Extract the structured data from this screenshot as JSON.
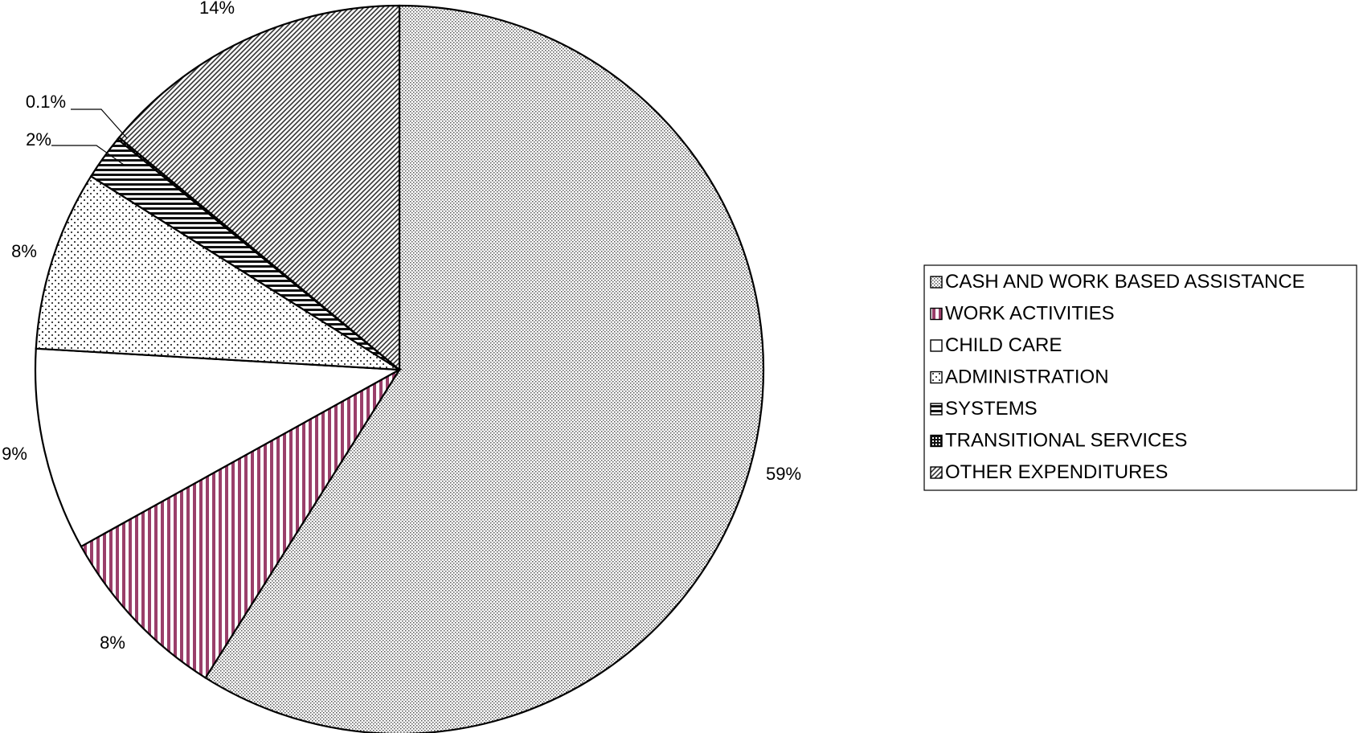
{
  "chart_data": {
    "type": "pie",
    "title": "",
    "slices": [
      {
        "label": "CASH AND WORK BASED ASSISTANCE",
        "value": 59,
        "display": "59%",
        "pattern": "fine-dots"
      },
      {
        "label": "WORK ACTIVITIES",
        "value": 8,
        "display": "8%",
        "pattern": "vertical-stripes",
        "color": "#9a3f6a"
      },
      {
        "label": "CHILD CARE",
        "value": 9,
        "display": "9%",
        "pattern": "solid-white"
      },
      {
        "label": "ADMINISTRATION",
        "value": 8,
        "display": "8%",
        "pattern": "sparse-dots"
      },
      {
        "label": "SYSTEMS",
        "value": 2,
        "display": "2%",
        "pattern": "horizontal-stripes"
      },
      {
        "label": "TRANSITIONAL SERVICES",
        "value": 0.1,
        "display": "0.1%",
        "pattern": "dark-checker"
      },
      {
        "label": "OTHER EXPENDITURES",
        "value": 14,
        "display": "14%",
        "pattern": "diagonal-hatch"
      }
    ],
    "legend": {
      "placement": "right",
      "entries": [
        "CASH AND WORK BASED ASSISTANCE",
        "WORK ACTIVITIES",
        "CHILD CARE",
        "ADMINISTRATION",
        "SYSTEMS",
        "TRANSITIONAL SERVICES",
        "OTHER EXPENDITURES"
      ]
    }
  }
}
